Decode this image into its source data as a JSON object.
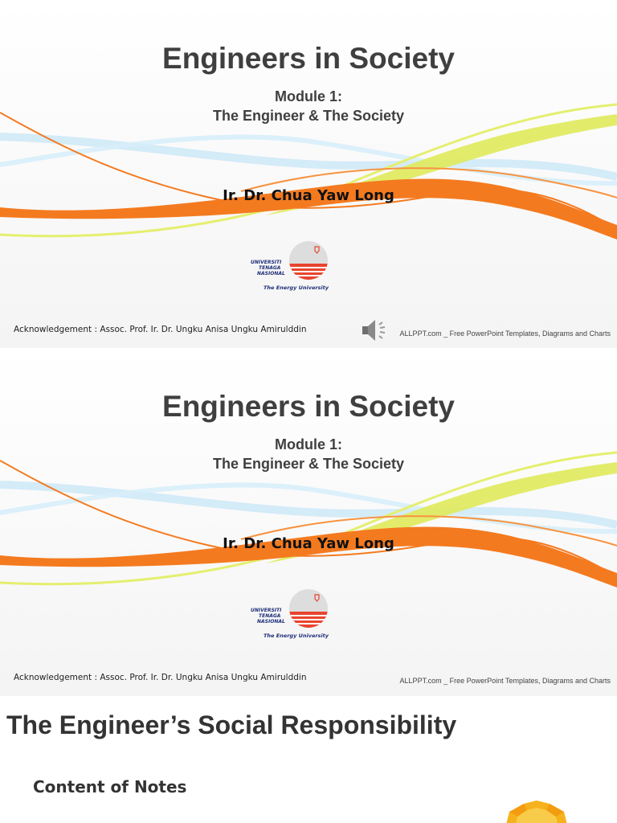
{
  "slides": [
    {
      "title": "Engineers in Society",
      "subtitle_line1": "Module 1:",
      "subtitle_line2": "The Engineer & The Society",
      "author": "Ir. Dr. Chua Yaw Long",
      "logo": {
        "text1": "UNIVERSITI",
        "text2": "TENAGA",
        "text3": "NASIONAL",
        "tagline": "The Energy University"
      },
      "acknowledgement": "Acknowledgement : Assoc. Prof. Ir. Dr. Ungku Anisa Ungku Amirulddin",
      "credit": "ALLPPT.com _ Free PowerPoint Templates, Diagrams and Charts",
      "has_speaker_icon": true
    },
    {
      "title": "Engineers in Society",
      "subtitle_line1": "Module 1:",
      "subtitle_line2": "The Engineer & The Society",
      "author": "Ir. Dr. Chua Yaw Long",
      "logo": {
        "text1": "UNIVERSITI",
        "text2": "TENAGA",
        "text3": "NASIONAL",
        "tagline": "The Energy University"
      },
      "acknowledgement": "Acknowledgement : Assoc. Prof. Ir. Dr. Ungku Anisa Ungku Amirulddin",
      "credit": "ALLPPT.com _ Free PowerPoint Templates, Diagrams and Charts",
      "has_speaker_icon": false
    },
    {
      "title": "The Engineer’s Social Responsibility",
      "subtitle": "Content of Notes"
    }
  ],
  "colors": {
    "title": "#3f3f3f",
    "orange": "#f47a1f",
    "lime": "#dfea5a",
    "light_blue": "#cfe9f7",
    "logo_red": "#e8442e",
    "logo_blue": "#1f2f7a"
  },
  "icons": [
    "speaker-icon",
    "university-logo",
    "sun-graphic"
  ]
}
